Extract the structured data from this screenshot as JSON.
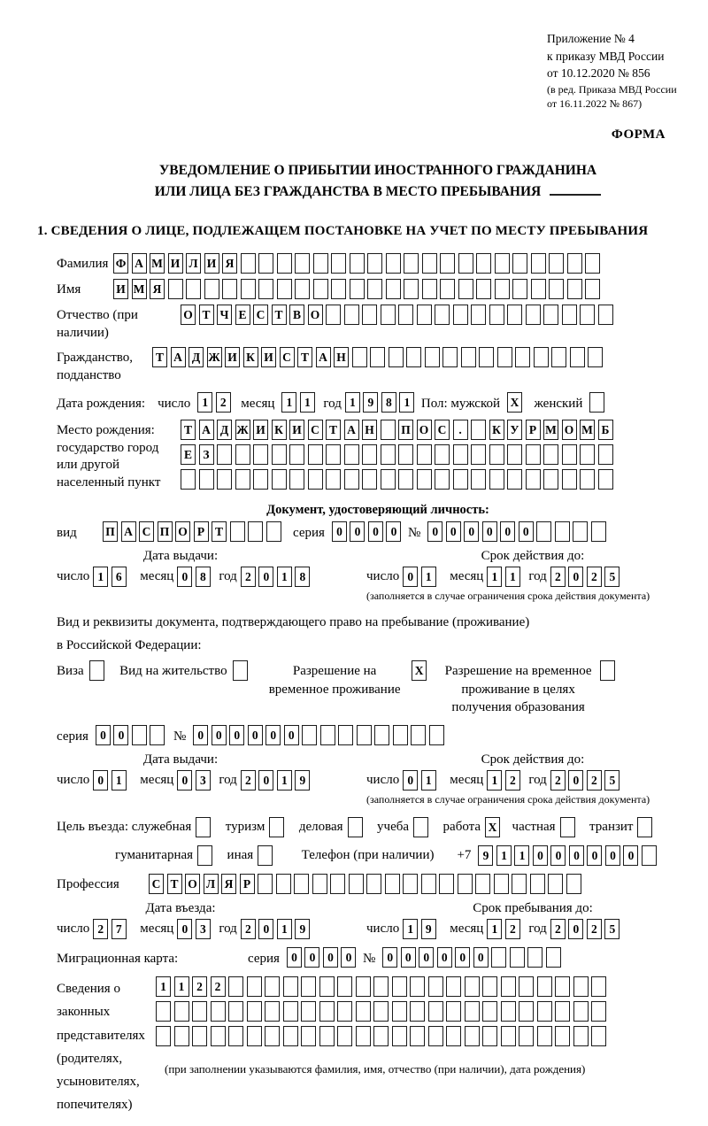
{
  "header": {
    "appendix": [
      "Приложение № 4",
      "к приказу МВД России",
      "от 10.12.2020 № 856"
    ],
    "revision": [
      "(в ред. Приказа МВД России",
      "от 16.11.2022 № 867)"
    ],
    "form_label": "ФОРМА"
  },
  "title": {
    "line1": "УВЕДОМЛЕНИЕ О ПРИБЫТИИ ИНОСТРАННОГО ГРАЖДАНИНА",
    "line2": "ИЛИ ЛИЦА БЕЗ ГРАЖДАНСТВА В МЕСТО ПРЕБЫВАНИЯ"
  },
  "section1_heading": "1. СВЕДЕНИЯ О ЛИЦЕ, ПОДЛЕЖАЩЕМ ПОСТАНОВКЕ НА УЧЕТ ПО МЕСТУ ПРЕБЫВАНИЯ",
  "labels": {
    "surname": "Фамилия",
    "given_name": "Имя",
    "patronymic": "Отчество (при наличии)",
    "citizenship": "Гражданство, подданство",
    "birth_date": "Дата рождения:",
    "day": "число",
    "month": "месяц",
    "year": "год",
    "sex_male": "Пол: мужской",
    "sex_female": "женский",
    "birth_place": "Место рождения: государство город или другой населенный пункт",
    "identity_doc_heading": "Документ, удостоверяющий личность:",
    "doc_type": "вид",
    "series": "серия",
    "number": "№",
    "issue_date": "Дата выдачи:",
    "valid_until": "Срок действия до:",
    "valid_note": "(заполняется в случае ограничения срока действия документа)",
    "permit_intro1": "Вид и реквизиты документа, подтверждающего право на пребывание (проживание)",
    "permit_intro2": "в Российской Федерации:",
    "visa": "Виза",
    "residence_permit": "Вид на жительство",
    "temp_permit": "Разрешение на временное проживание",
    "edu_permit": "Разрешение на временное проживание в целях получения образования",
    "purpose_prefix": "Цель въезда: служебная",
    "tourism": "туризм",
    "business": "деловая",
    "study": "учеба",
    "work": "работа",
    "private": "частная",
    "transit": "транзит",
    "humanitarian": "гуманитарная",
    "other": "иная",
    "phone": "Телефон (при наличии)",
    "phone_prefix": "+7",
    "profession": "Профессия",
    "entry_date": "Дата въезда:",
    "stay_until": "Срок пребывания до:",
    "migration_card": "Миграционная карта:",
    "representatives": "Сведения о законных представителях (родителях, усыновителях, попечителях)",
    "representatives_note": "(при заполнении указываются фамилия, имя, отчество (при наличии), дата рождения)"
  },
  "values": {
    "surname": {
      "text": "ФАМИЛИЯ",
      "len": 27
    },
    "given_name": {
      "text": "ИМЯ",
      "len": 27
    },
    "patronymic": {
      "text": "ОТЧЕСТВО",
      "len": 24
    },
    "citizenship": {
      "text": "ТАДЖИКИСТАН",
      "len": 25
    },
    "birth": {
      "day": "12",
      "month": "11",
      "year": "1981",
      "male": "X",
      "female": " "
    },
    "birth_place_rows": [
      {
        "text": "ТАДЖИКИСТАН ПОС. КУРМОМБ",
        "len": 24
      },
      {
        "text": "ЕЗ",
        "len": 24
      },
      {
        "text": "",
        "len": 24
      }
    ],
    "identity_doc": {
      "type": {
        "text": "ПАСПОРТ",
        "len": 10
      },
      "series": "0000",
      "number": {
        "text": "000000",
        "len": 10
      },
      "issue": {
        "day": "16",
        "month": "08",
        "year": "2018"
      },
      "expiry": {
        "day": "01",
        "month": "11",
        "year": "2025"
      }
    },
    "permit": {
      "visa": " ",
      "residence": " ",
      "temp": "X",
      "edu": " ",
      "series": {
        "text": "00",
        "len": 4
      },
      "number": {
        "text": "000000",
        "len": 14
      },
      "issue": {
        "day": "01",
        "month": "03",
        "year": "2019"
      },
      "expiry": {
        "day": "01",
        "month": "12",
        "year": "2025"
      }
    },
    "purpose": {
      "official": " ",
      "tourism": " ",
      "business": " ",
      "study": " ",
      "work": "X",
      "private": " ",
      "transit": " ",
      "humanitarian": " ",
      "other": " "
    },
    "phone": {
      "text": "911000000",
      "len": 10
    },
    "profession": {
      "text": "СТОЛЯР",
      "len": 24
    },
    "entry": {
      "day": "27",
      "month": "03",
      "year": "2019"
    },
    "stay": {
      "day": "19",
      "month": "12",
      "year": "2025"
    },
    "migration": {
      "series": "0000",
      "number": {
        "text": "000000",
        "len": 10
      }
    },
    "representatives_rows": [
      {
        "text": "1122",
        "len": 25
      },
      {
        "text": "",
        "len": 25
      },
      {
        "text": "",
        "len": 25
      }
    ]
  }
}
